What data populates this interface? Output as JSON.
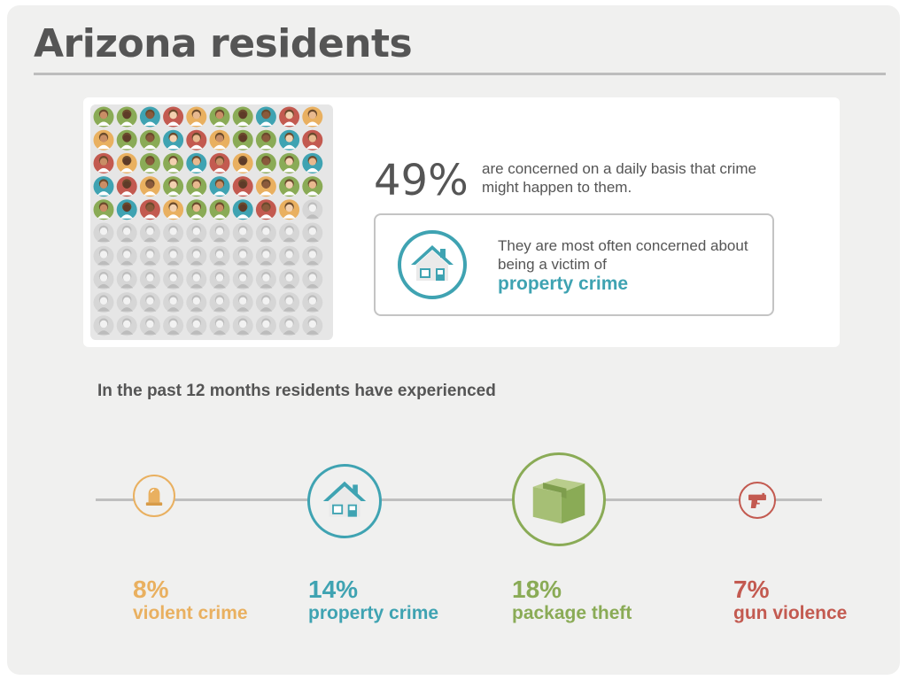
{
  "header": {
    "title": "Arizona residents"
  },
  "concern": {
    "stat": "49%",
    "description": "are concerned on a daily basis that crime might happen to them.",
    "box_text": "They are most often concerned about being a victim of",
    "box_highlight": "property crime",
    "icon": "house-icon"
  },
  "people_grid": {
    "total": 100,
    "highlighted": 49,
    "icon": "person-avatar-icon"
  },
  "experienced": {
    "heading": "In the past 12 months residents have experienced",
    "items": [
      {
        "value": "8%",
        "label": "violent crime",
        "icon": "siren-icon",
        "color": "#e9b060"
      },
      {
        "value": "14%",
        "label": "property crime",
        "icon": "house-icon",
        "color": "#3fa3b2"
      },
      {
        "value": "18%",
        "label": "package theft",
        "icon": "package-icon",
        "color": "#8aab56"
      },
      {
        "value": "7%",
        "label": "gun violence",
        "icon": "gun-icon",
        "color": "#c35a50"
      }
    ]
  },
  "chart_data": {
    "type": "bar",
    "title": "In the past 12 months residents have experienced",
    "categories": [
      "violent crime",
      "property crime",
      "package theft",
      "gun violence"
    ],
    "values": [
      8,
      14,
      18,
      7
    ],
    "unit": "%"
  },
  "colors": {
    "background": "#f0f0ef",
    "text": "#555555",
    "teal": "#3fa3b2",
    "orange": "#e9b060",
    "green": "#8aab56",
    "red": "#c35a50",
    "gray_avatar": "#d6d6d6"
  }
}
